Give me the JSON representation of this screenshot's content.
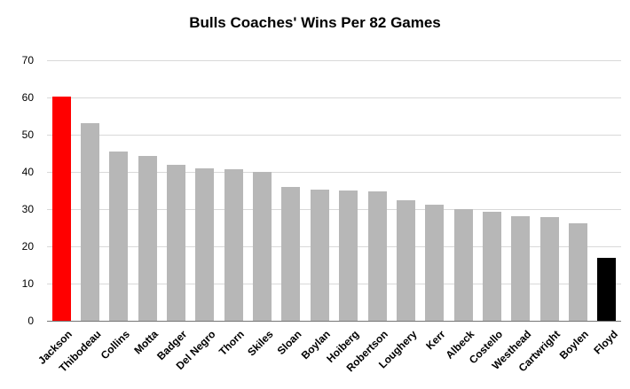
{
  "chart_data": {
    "type": "bar",
    "title": "Bulls Coaches' Wins Per 82 Games",
    "xlabel": "",
    "ylabel": "",
    "categories": [
      "Jackson",
      "Thibodeau",
      "Collins",
      "Motta",
      "Badger",
      "Del Negro",
      "Thorn",
      "Skiles",
      "Sloan",
      "Boylan",
      "Hoiberg",
      "Robertson",
      "Loughery",
      "Kerr",
      "Albeck",
      "Costello",
      "Westhead",
      "Cartwright",
      "Boylen",
      "Floyd"
    ],
    "values": [
      60.3,
      53,
      45.5,
      44.3,
      42,
      40.9,
      40.8,
      40,
      35.9,
      35.2,
      35,
      34.8,
      32.4,
      31.2,
      30.1,
      29.3,
      28,
      27.8,
      26.1,
      16.8
    ],
    "bar_colors": [
      "#ff0000",
      "#b7b7b7",
      "#b7b7b7",
      "#b7b7b7",
      "#b7b7b7",
      "#b7b7b7",
      "#b7b7b7",
      "#b7b7b7",
      "#b7b7b7",
      "#b7b7b7",
      "#b7b7b7",
      "#b7b7b7",
      "#b7b7b7",
      "#b7b7b7",
      "#b7b7b7",
      "#b7b7b7",
      "#b7b7b7",
      "#b7b7b7",
      "#b7b7b7",
      "#000000"
    ],
    "ylim": [
      0,
      70
    ],
    "y_ticks": [
      0,
      10,
      20,
      30,
      40,
      50,
      60,
      70
    ],
    "grid": true,
    "legend": "none",
    "colors": {
      "background": "#ffffff",
      "default_bar": "#b7b7b7",
      "highlight_first": "#ff0000",
      "highlight_last": "#000000",
      "gridline": "#d9d9d9",
      "axis_line": "#757575",
      "text": "#000000"
    }
  }
}
